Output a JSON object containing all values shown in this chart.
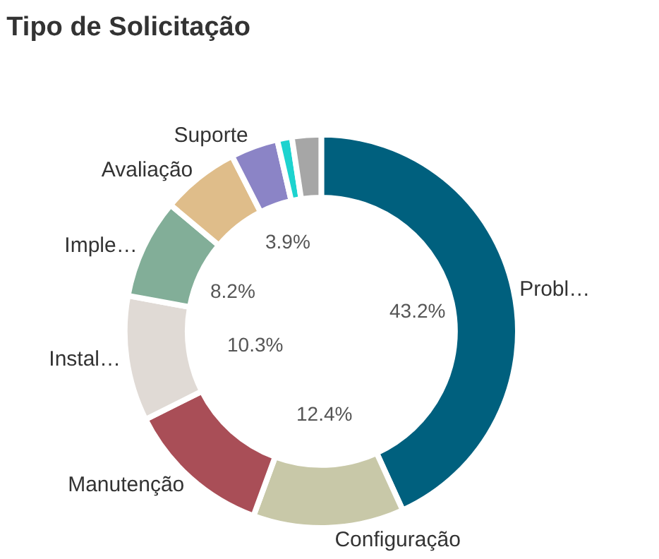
{
  "chart_data": {
    "type": "donut",
    "title": "Tipo de Solicitação",
    "categories": [
      "Probl…",
      "Configuração",
      "Manutenção",
      "Instal…",
      "Imple…",
      "Avaliação",
      "Suporte",
      null,
      null
    ],
    "values": [
      43.2,
      12.4,
      12.0,
      10.3,
      8.2,
      6.4,
      3.9,
      1.2,
      2.4
    ],
    "value_labels": [
      "43.2%",
      "12.4%",
      null,
      "10.3%",
      "8.2%",
      null,
      "3.9%",
      null,
      null
    ],
    "colors": [
      "#00607e",
      "#c8c8a8",
      "#a94e57",
      "#e0dad5",
      "#82ae98",
      "#dfbd8a",
      "#8b84c6",
      "#1dd3cf",
      "#a6a6a6"
    ],
    "legend": false
  }
}
